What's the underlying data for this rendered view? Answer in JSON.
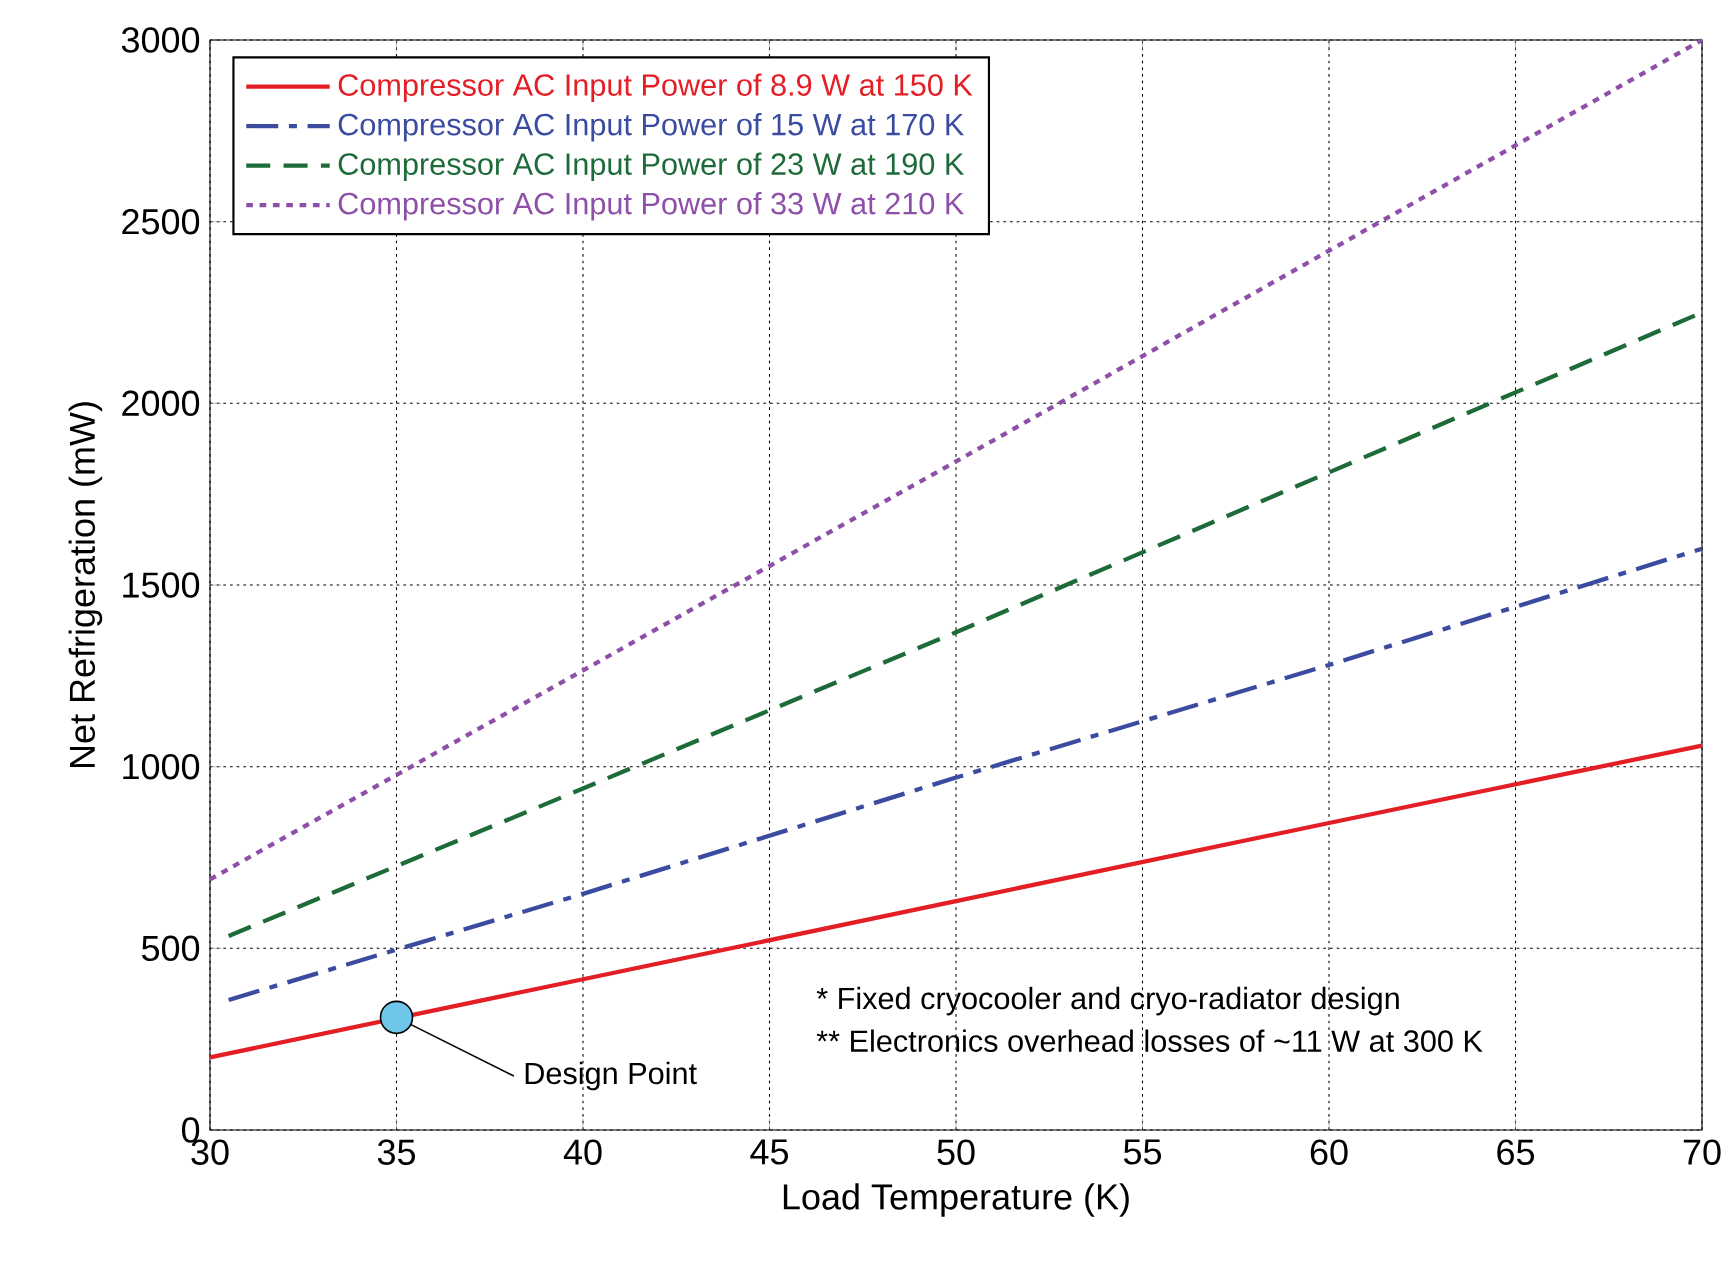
{
  "chart_data": {
    "type": "line",
    "xlabel": "Load Temperature (K)",
    "ylabel": "Net Refrigeration (mW)",
    "xlim": [
      30,
      70
    ],
    "ylim": [
      0,
      3000
    ],
    "xticks": [
      30,
      35,
      40,
      45,
      50,
      55,
      60,
      65,
      70
    ],
    "yticks": [
      0,
      500,
      1000,
      1500,
      2000,
      2500,
      3000
    ],
    "grid": true,
    "legend": "top left",
    "marker": "none",
    "series": [
      {
        "name": "Compressor AC Input Power of 8.9 W at 150 K",
        "color": "#e31e24",
        "line_style": "solid",
        "x": [
          30,
          40,
          50,
          60,
          70
        ],
        "values": [
          200,
          415,
          630,
          845,
          1058
        ]
      },
      {
        "name": "Compressor AC Input Power of 15 W at 170 K",
        "color": "#3b4ba0",
        "line_style": "dashdot",
        "x": [
          30.5,
          40,
          50,
          60,
          70
        ],
        "values": [
          358,
          650,
          970,
          1280,
          1600
        ]
      },
      {
        "name": "Compressor AC Input Power of 23 W at 190 K",
        "color": "#1e6b3a",
        "line_style": "dashed",
        "x": [
          30.5,
          40,
          50,
          60,
          70
        ],
        "values": [
          534,
          940,
          1370,
          1810,
          2250
        ]
      },
      {
        "name": "Compressor AC Input Power of 33 W at 210 K",
        "color": "#8e4fa8",
        "line_style": "dotted",
        "x": [
          30,
          40,
          50,
          60,
          70
        ],
        "values": [
          690,
          1265,
          1840,
          2420,
          3000
        ]
      },
      {
        "type": "scatter",
        "color": "#6ec6e8",
        "marker": "circle",
        "x": [
          35
        ],
        "values": [
          310
        ]
      }
    ],
    "annotations": [
      {
        "text": "Design Point",
        "x": 35,
        "y": 310
      },
      "*   Fixed cryocooler and cryo-radiator design",
      "** Electronics overhead losses of ~11 W at 300 K"
    ]
  }
}
